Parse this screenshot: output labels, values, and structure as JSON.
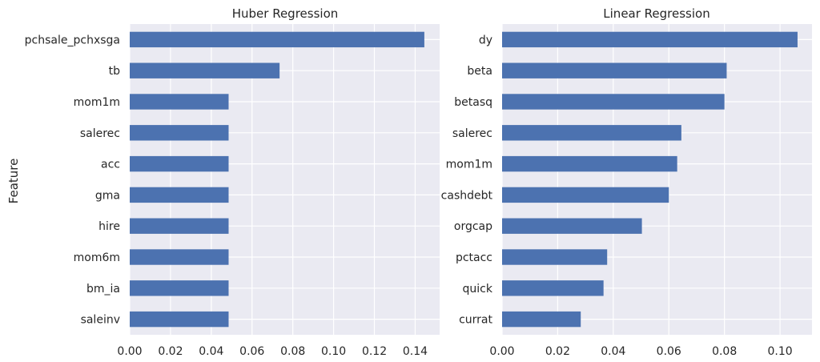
{
  "figure": {
    "ylabel": "Feature"
  },
  "chart_data": [
    {
      "type": "bar",
      "orientation": "horizontal",
      "title": "Huber Regression",
      "xlabel": "",
      "ylabel": "Feature",
      "categories": [
        "pchsale_pchxsga",
        "tb",
        "mom1m",
        "salerec",
        "acc",
        "gma",
        "hire",
        "mom6m",
        "bm_ia",
        "saleinv"
      ],
      "values": [
        0.1445,
        0.0735,
        0.0485,
        0.0485,
        0.0485,
        0.0485,
        0.0485,
        0.0485,
        0.0485,
        0.0485
      ],
      "xlim": [
        0.0,
        0.152
      ],
      "xticks": [
        "0.00",
        "0.02",
        "0.04",
        "0.06",
        "0.08",
        "0.10",
        "0.12",
        "0.14"
      ],
      "xtick_values": [
        0.0,
        0.02,
        0.04,
        0.06,
        0.08,
        0.1,
        0.12,
        0.14
      ],
      "grid": true,
      "bar_color": "#4c72b0",
      "background": "#eaeaf2"
    },
    {
      "type": "bar",
      "orientation": "horizontal",
      "title": "Linear Regression",
      "xlabel": "",
      "ylabel": "",
      "categories": [
        "dy",
        "beta",
        "betasq",
        "salerec",
        "mom1m",
        "cashdebt",
        "orgcap",
        "pctacc",
        "quick",
        "currat"
      ],
      "values": [
        0.1063,
        0.0808,
        0.08,
        0.0645,
        0.063,
        0.06,
        0.0503,
        0.0378,
        0.0365,
        0.0283
      ],
      "xlim": [
        0.0,
        0.1115
      ],
      "xticks": [
        "0.00",
        "0.02",
        "0.04",
        "0.06",
        "0.08",
        "0.10"
      ],
      "xtick_values": [
        0.0,
        0.02,
        0.04,
        0.06,
        0.08,
        0.1
      ],
      "grid": true,
      "bar_color": "#4c72b0",
      "background": "#eaeaf2"
    }
  ]
}
